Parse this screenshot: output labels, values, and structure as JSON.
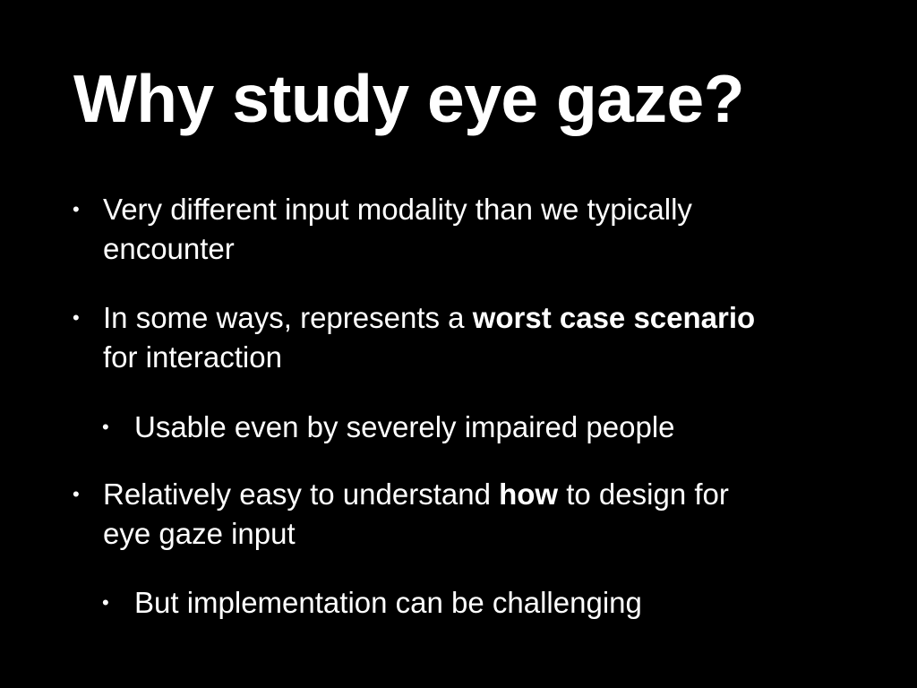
{
  "slide": {
    "title": "Why study eye gaze?",
    "bullet_glyph": "•",
    "items": [
      {
        "line1": "Very different input modality than we typically",
        "line2": "encounter"
      },
      {
        "line1_pre": "In some ways, represents a ",
        "line1_bold": "worst case scenario",
        "line2": "for interaction"
      },
      {
        "text": "Usable even by severely impaired people"
      },
      {
        "line1_pre": "Relatively easy to understand ",
        "line1_bold": "how",
        "line1_post": " to design for",
        "line2": "eye gaze input"
      },
      {
        "text": "But implementation can be challenging"
      }
    ]
  }
}
